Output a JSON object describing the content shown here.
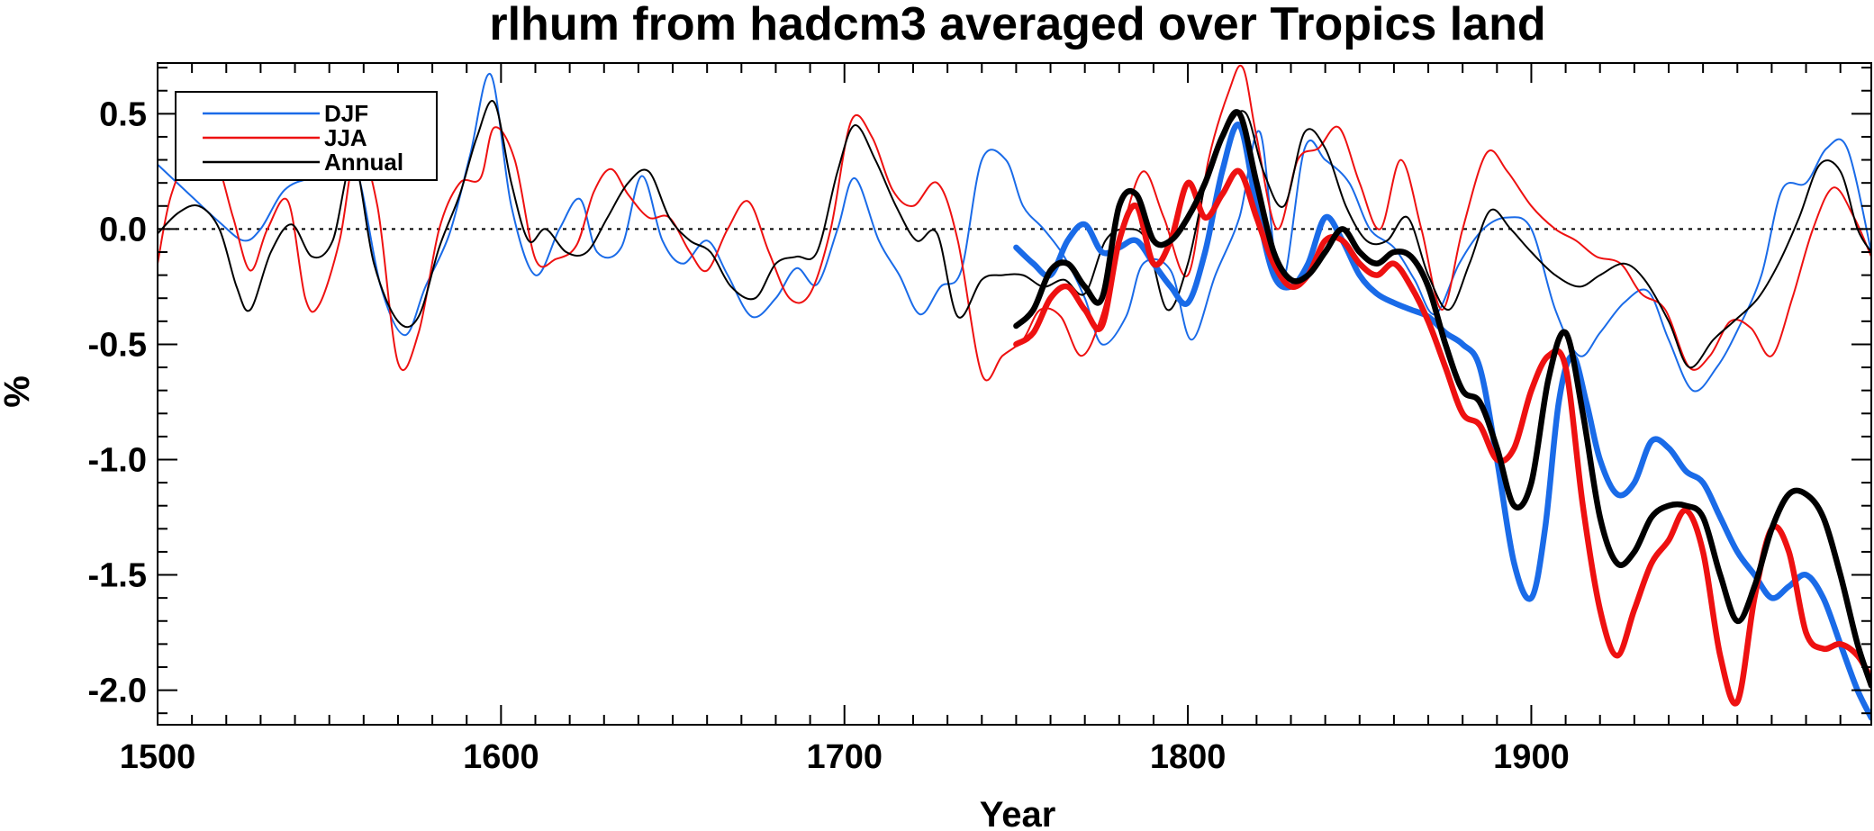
{
  "chart_data": {
    "type": "line",
    "title": "rlhum from hadcm3 averaged over Tropics land",
    "xlabel": "Year",
    "ylabel": "%",
    "xlim": [
      1500,
      1999
    ],
    "ylim": [
      -2.15,
      0.72
    ],
    "x_ticks": [
      1500,
      1600,
      1700,
      1800,
      1900
    ],
    "x_tick_labels": [
      "1500",
      "1600",
      "1700",
      "1800",
      "1900"
    ],
    "y_ticks": [
      0.5,
      0.0,
      -0.5,
      -1.0,
      -1.5,
      -2.0
    ],
    "y_tick_labels": [
      "0.5",
      "0.0",
      "-0.5",
      "-1.0",
      "-1.5",
      "-2.0"
    ],
    "zero_line": "dotted",
    "legend_position": "top-left",
    "legend": [
      {
        "label": "DJF",
        "color": "#1a6be8"
      },
      {
        "label": "JJA",
        "color": "#ee1111"
      },
      {
        "label": "Annual",
        "color": "#000000"
      }
    ],
    "series": [
      {
        "name": "DJF",
        "group": "thin",
        "color": "#1a6be8",
        "x": [
          1500,
          1510,
          1518,
          1525,
          1530,
          1537,
          1545,
          1552,
          1558,
          1565,
          1572,
          1578,
          1585,
          1591,
          1597,
          1603,
          1610,
          1617,
          1623,
          1628,
          1635,
          1641,
          1647,
          1653,
          1660,
          1666,
          1673,
          1680,
          1686,
          1692,
          1698,
          1703,
          1710,
          1716,
          1722,
          1728,
          1734,
          1740,
          1747,
          1752,
          1758,
          1764,
          1770,
          1775,
          1782,
          1787,
          1795,
          1801,
          1808,
          1815,
          1821,
          1827,
          1834,
          1840,
          1847,
          1853,
          1860,
          1866,
          1872,
          1879,
          1886,
          1893,
          1900,
          1907,
          1914,
          1920,
          1927,
          1934,
          1940,
          1947,
          1954,
          1960,
          1967,
          1973,
          1980,
          1986,
          1992,
          1999
        ],
        "y": [
          0.28,
          0.14,
          0.03,
          -0.05,
          0.0,
          0.17,
          0.22,
          0.22,
          0.25,
          -0.25,
          -0.46,
          -0.25,
          -0.02,
          0.32,
          0.67,
          0.1,
          -0.2,
          0.0,
          0.13,
          -0.1,
          -0.08,
          0.23,
          -0.05,
          -0.15,
          -0.05,
          -0.2,
          -0.38,
          -0.3,
          -0.17,
          -0.24,
          0.0,
          0.22,
          -0.05,
          -0.2,
          -0.37,
          -0.25,
          -0.18,
          0.3,
          0.3,
          0.1,
          0.0,
          -0.12,
          -0.3,
          -0.5,
          -0.38,
          -0.15,
          -0.18,
          -0.48,
          -0.2,
          0.05,
          0.42,
          -0.25,
          0.35,
          0.3,
          0.2,
          0.0,
          -0.08,
          -0.22,
          -0.37,
          -0.15,
          0.0,
          0.05,
          0.0,
          -0.35,
          -0.55,
          -0.45,
          -0.32,
          -0.27,
          -0.48,
          -0.7,
          -0.6,
          -0.44,
          -0.2,
          0.17,
          0.2,
          0.35,
          0.35,
          -0.1
        ]
      },
      {
        "name": "JJA",
        "group": "thin",
        "color": "#ee1111",
        "x": [
          1500,
          1504,
          1511,
          1517,
          1522,
          1527,
          1532,
          1538,
          1543,
          1547,
          1553,
          1558,
          1564,
          1570,
          1576,
          1582,
          1588,
          1594,
          1598,
          1604,
          1610,
          1616,
          1622,
          1627,
          1632,
          1637,
          1643,
          1649,
          1655,
          1660,
          1666,
          1672,
          1678,
          1684,
          1690,
          1696,
          1702,
          1708,
          1714,
          1720,
          1727,
          1733,
          1740,
          1746,
          1752,
          1757,
          1763,
          1769,
          1775,
          1781,
          1787,
          1793,
          1800,
          1806,
          1812,
          1816,
          1820,
          1826,
          1832,
          1838,
          1844,
          1850,
          1856,
          1862,
          1868,
          1874,
          1880,
          1887,
          1893,
          1900,
          1907,
          1913,
          1919,
          1926,
          1932,
          1939,
          1946,
          1952,
          1958,
          1964,
          1970,
          1976,
          1982,
          1988,
          1994,
          1999
        ],
        "y": [
          -0.15,
          0.15,
          0.37,
          0.3,
          0.05,
          -0.18,
          0.0,
          0.12,
          -0.3,
          -0.33,
          -0.05,
          0.35,
          0.1,
          -0.58,
          -0.45,
          0.0,
          0.2,
          0.22,
          0.44,
          0.3,
          -0.13,
          -0.13,
          -0.07,
          0.16,
          0.26,
          0.15,
          0.05,
          0.05,
          -0.1,
          -0.18,
          0.0,
          0.12,
          -0.1,
          -0.3,
          -0.28,
          0.0,
          0.47,
          0.4,
          0.17,
          0.1,
          0.2,
          -0.05,
          -0.63,
          -0.55,
          -0.48,
          -0.35,
          -0.38,
          -0.55,
          -0.37,
          0.0,
          0.25,
          0.05,
          -0.2,
          0.3,
          0.6,
          0.7,
          0.4,
          0.0,
          0.3,
          0.35,
          0.44,
          0.2,
          0.0,
          0.3,
          0.0,
          -0.35,
          0.0,
          0.33,
          0.25,
          0.1,
          0.0,
          -0.05,
          -0.12,
          -0.15,
          -0.28,
          -0.35,
          -0.6,
          -0.55,
          -0.4,
          -0.43,
          -0.55,
          -0.3,
          0.0,
          0.18,
          0.05,
          -0.12
        ]
      },
      {
        "name": "Annual",
        "group": "thin",
        "color": "#000000",
        "x": [
          1500,
          1506,
          1512,
          1518,
          1523,
          1527,
          1533,
          1539,
          1545,
          1551,
          1557,
          1563,
          1570,
          1576,
          1582,
          1588,
          1593,
          1598,
          1603,
          1608,
          1613,
          1619,
          1625,
          1631,
          1637,
          1643,
          1649,
          1655,
          1661,
          1667,
          1674,
          1680,
          1686,
          1692,
          1698,
          1703,
          1709,
          1715,
          1721,
          1727,
          1733,
          1740,
          1746,
          1752,
          1758,
          1764,
          1770,
          1776,
          1782,
          1788,
          1794,
          1800,
          1806,
          1812,
          1817,
          1822,
          1828,
          1834,
          1840,
          1846,
          1852,
          1858,
          1864,
          1870,
          1876,
          1882,
          1888,
          1894,
          1900,
          1907,
          1914,
          1920,
          1927,
          1933,
          1940,
          1946,
          1953,
          1959,
          1966,
          1972,
          1978,
          1984,
          1990,
          1995,
          1999
        ],
        "y": [
          -0.02,
          0.07,
          0.1,
          0.0,
          -0.25,
          -0.35,
          -0.1,
          0.02,
          -0.12,
          -0.05,
          0.3,
          -0.15,
          -0.4,
          -0.38,
          -0.08,
          0.15,
          0.4,
          0.55,
          0.2,
          -0.05,
          0.0,
          -0.1,
          -0.1,
          0.05,
          0.2,
          0.25,
          0.05,
          -0.05,
          -0.1,
          -0.25,
          -0.3,
          -0.15,
          -0.12,
          -0.1,
          0.25,
          0.45,
          0.3,
          0.1,
          -0.05,
          -0.02,
          -0.38,
          -0.22,
          -0.2,
          -0.2,
          -0.25,
          -0.22,
          -0.28,
          -0.05,
          0.0,
          -0.05,
          -0.35,
          -0.15,
          0.25,
          0.45,
          0.5,
          0.25,
          0.1,
          0.42,
          0.35,
          0.1,
          -0.05,
          -0.05,
          0.05,
          -0.2,
          -0.35,
          -0.15,
          0.08,
          0.0,
          -0.1,
          -0.2,
          -0.25,
          -0.2,
          -0.15,
          -0.22,
          -0.4,
          -0.6,
          -0.48,
          -0.4,
          -0.3,
          -0.15,
          0.05,
          0.28,
          0.25,
          0.0,
          -0.1
        ]
      },
      {
        "name": "DJF (thick)",
        "group": "thick",
        "color": "#1a6be8",
        "x": [
          1750,
          1755,
          1760,
          1765,
          1770,
          1775,
          1780,
          1785,
          1790,
          1795,
          1800,
          1805,
          1810,
          1815,
          1820,
          1825,
          1830,
          1835,
          1840,
          1845,
          1850,
          1855,
          1860,
          1865,
          1870,
          1875,
          1880,
          1885,
          1890,
          1895,
          1900,
          1904,
          1908,
          1912,
          1916,
          1920,
          1925,
          1930,
          1935,
          1940,
          1945,
          1950,
          1955,
          1960,
          1965,
          1970,
          1975,
          1980,
          1985,
          1990,
          1995,
          1999
        ],
        "y": [
          -0.08,
          -0.15,
          -0.2,
          -0.05,
          0.02,
          -0.1,
          -0.08,
          -0.05,
          -0.15,
          -0.25,
          -0.32,
          -0.1,
          0.25,
          0.45,
          0.1,
          -0.2,
          -0.25,
          -0.15,
          0.05,
          -0.05,
          -0.2,
          -0.28,
          -0.32,
          -0.35,
          -0.38,
          -0.45,
          -0.5,
          -0.6,
          -1.0,
          -1.45,
          -1.6,
          -1.3,
          -0.75,
          -0.55,
          -0.75,
          -1.0,
          -1.15,
          -1.1,
          -0.92,
          -0.95,
          -1.05,
          -1.1,
          -1.25,
          -1.4,
          -1.5,
          -1.6,
          -1.55,
          -1.5,
          -1.6,
          -1.8,
          -2.0,
          -2.12
        ]
      },
      {
        "name": "JJA (thick)",
        "group": "thick",
        "color": "#ee1111",
        "x": [
          1750,
          1755,
          1760,
          1765,
          1770,
          1775,
          1780,
          1785,
          1790,
          1795,
          1800,
          1805,
          1810,
          1815,
          1820,
          1825,
          1830,
          1835,
          1840,
          1845,
          1850,
          1855,
          1860,
          1865,
          1870,
          1875,
          1880,
          1885,
          1890,
          1895,
          1900,
          1905,
          1910,
          1915,
          1920,
          1925,
          1930,
          1935,
          1940,
          1945,
          1950,
          1955,
          1960,
          1965,
          1970,
          1975,
          1980,
          1985,
          1990,
          1995,
          1999
        ],
        "y": [
          -0.5,
          -0.45,
          -0.3,
          -0.25,
          -0.35,
          -0.42,
          -0.05,
          0.1,
          -0.15,
          -0.05,
          0.2,
          0.05,
          0.15,
          0.25,
          0.05,
          -0.15,
          -0.25,
          -0.2,
          -0.05,
          -0.05,
          -0.15,
          -0.2,
          -0.15,
          -0.25,
          -0.4,
          -0.6,
          -0.8,
          -0.85,
          -1.0,
          -0.95,
          -0.7,
          -0.55,
          -0.6,
          -1.2,
          -1.65,
          -1.85,
          -1.65,
          -1.45,
          -1.35,
          -1.22,
          -1.4,
          -1.85,
          -2.05,
          -1.6,
          -1.3,
          -1.4,
          -1.75,
          -1.82,
          -1.8,
          -1.85,
          -1.95
        ]
      },
      {
        "name": "Annual (thick)",
        "group": "thick",
        "color": "#000000",
        "x": [
          1750,
          1755,
          1760,
          1765,
          1770,
          1775,
          1780,
          1785,
          1790,
          1795,
          1800,
          1805,
          1810,
          1815,
          1820,
          1825,
          1830,
          1835,
          1840,
          1845,
          1850,
          1855,
          1860,
          1865,
          1870,
          1875,
          1880,
          1885,
          1890,
          1895,
          1900,
          1905,
          1910,
          1915,
          1920,
          1925,
          1930,
          1935,
          1940,
          1945,
          1950,
          1955,
          1960,
          1965,
          1970,
          1975,
          1980,
          1985,
          1990,
          1995,
          1999
        ],
        "y": [
          -0.42,
          -0.35,
          -0.18,
          -0.15,
          -0.25,
          -0.3,
          0.1,
          0.15,
          -0.05,
          -0.05,
          0.05,
          0.2,
          0.4,
          0.5,
          0.2,
          -0.1,
          -0.22,
          -0.2,
          -0.1,
          0.0,
          -0.1,
          -0.15,
          -0.1,
          -0.12,
          -0.25,
          -0.5,
          -0.7,
          -0.75,
          -0.95,
          -1.2,
          -1.1,
          -0.65,
          -0.45,
          -0.8,
          -1.25,
          -1.45,
          -1.4,
          -1.25,
          -1.2,
          -1.2,
          -1.25,
          -1.5,
          -1.7,
          -1.55,
          -1.3,
          -1.15,
          -1.15,
          -1.25,
          -1.5,
          -1.8,
          -1.98
        ]
      }
    ]
  }
}
